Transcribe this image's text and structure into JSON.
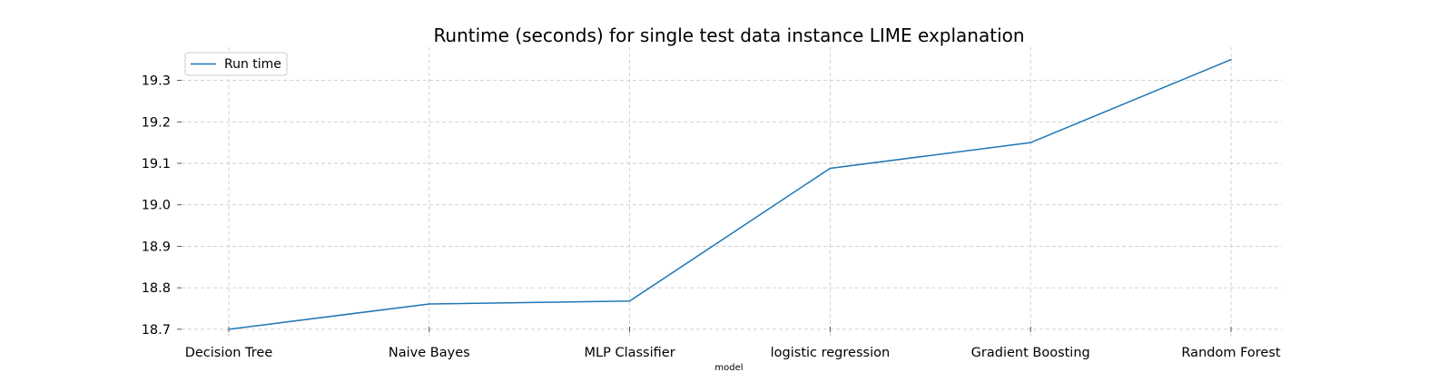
{
  "chart_data": {
    "type": "line",
    "title": "Runtime (seconds) for single test data instance LIME explanation",
    "xlabel": "model",
    "ylabel": "",
    "categories": [
      "Decision Tree",
      "Naive Bayes",
      "MLP Classifier",
      "logistic regression",
      "Gradient Boosting",
      "Random Forest"
    ],
    "series": [
      {
        "name": "Run time",
        "values": [
          18.7,
          18.761,
          18.768,
          19.088,
          19.15,
          19.35
        ],
        "color": "#1f77b4"
      }
    ],
    "yticks": [
      18.7,
      18.8,
      18.9,
      19.0,
      19.1,
      19.2,
      19.3
    ],
    "ytick_labels": [
      "18.7",
      "18.8",
      "18.9",
      "19.0",
      "19.1",
      "19.2",
      "19.3"
    ],
    "ylim": [
      18.68,
      19.38
    ],
    "grid": true,
    "legend_position": "top-left"
  }
}
